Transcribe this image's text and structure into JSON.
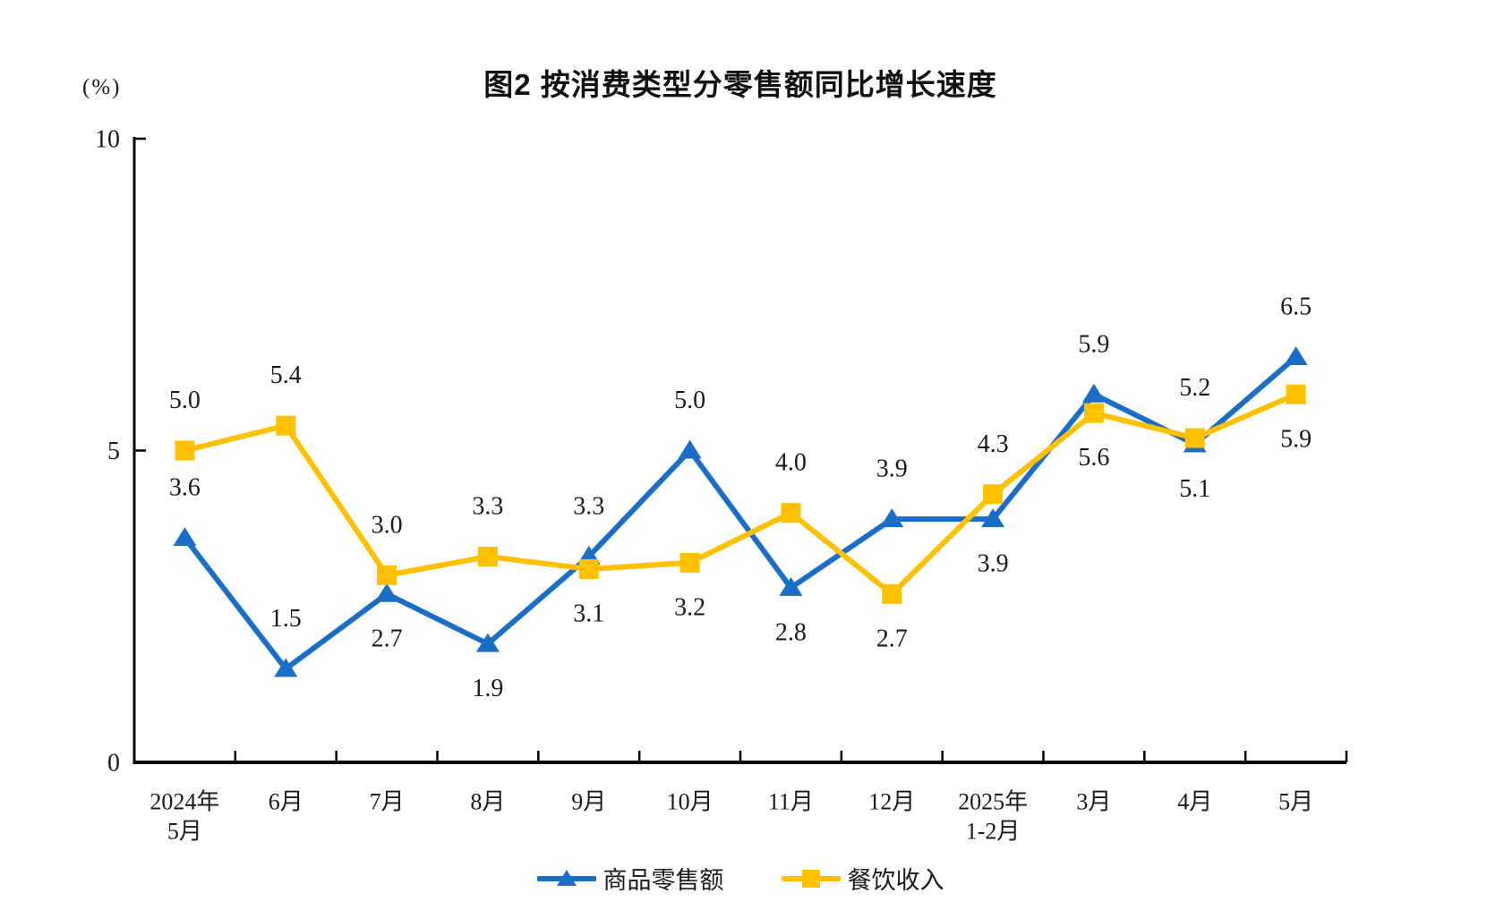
{
  "chart_data": {
    "type": "line",
    "title": "图2 按消费类型分零售额同比增长速度",
    "unit_label": "(%)",
    "xlabel": "",
    "ylabel": "(%)",
    "ylim": [
      0,
      10
    ],
    "yticks": [
      0,
      5,
      10
    ],
    "grid": false,
    "legend_position": "bottom",
    "categories": [
      "2024年\n5月",
      "6月",
      "7月",
      "8月",
      "9月",
      "10月",
      "11月",
      "12月",
      "2025年\n1-2月",
      "3月",
      "4月",
      "5月"
    ],
    "series": [
      {
        "name": "商品零售额",
        "color": "#1B6EC8",
        "marker": "triangle",
        "values": [
          3.6,
          1.5,
          2.7,
          1.9,
          3.3,
          5.0,
          2.8,
          3.9,
          3.9,
          5.9,
          5.1,
          6.5
        ],
        "label_positions": [
          "above",
          "above",
          "below",
          "below",
          "above",
          "above",
          "below",
          "above",
          "below",
          "above",
          "below",
          "above"
        ]
      },
      {
        "name": "餐饮收入",
        "color": "#FFC000",
        "marker": "square",
        "values": [
          5.0,
          5.4,
          3.0,
          3.3,
          3.1,
          3.2,
          4.0,
          2.7,
          4.3,
          5.6,
          5.2,
          5.9
        ],
        "label_positions": [
          "above",
          "above",
          "above",
          "above",
          "below",
          "below",
          "above",
          "below",
          "above",
          "below",
          "above",
          "below"
        ]
      }
    ],
    "colors": {
      "axis": "#000000",
      "text": "#1a1a1a",
      "background": "#ffffff"
    }
  }
}
